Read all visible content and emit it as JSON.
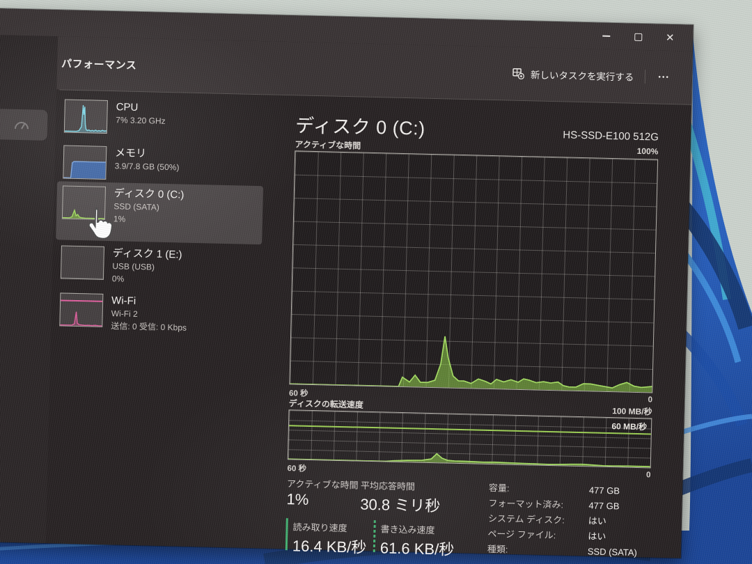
{
  "titlebar": {
    "close_glyph": "✕"
  },
  "header": {
    "title": "パフォーマンス",
    "run_new_task_label": "新しいタスクを実行する",
    "more_glyph": "•••"
  },
  "sidebar": {
    "items": [
      {
        "name": "CPU",
        "line2": "7%  3.20 GHz"
      },
      {
        "name": "メモリ",
        "line2": "3.9/7.8 GB (50%)"
      },
      {
        "name": "ディスク 0 (C:)",
        "line2": "SSD (SATA)",
        "line3": "1%"
      },
      {
        "name": "ディスク 1 (E:)",
        "line2": "USB (USB)",
        "line3": "0%"
      },
      {
        "name": "Wi-Fi",
        "line2": "Wi-Fi 2",
        "line3": "送信: 0 受信: 0 Kbps"
      }
    ]
  },
  "main": {
    "title": "ディスク 0 (C:)",
    "subtitle": "HS-SSD-E100 512G",
    "chart1_label": "アクティブな時間",
    "chart1_max": "100%",
    "chart2_label": "ディスクの転送速度",
    "chart2_max": "100 MB/秒",
    "chart2_marker": "60 MB/秒",
    "x_left": "60 秒",
    "x_right": "0",
    "stats": [
      {
        "label": "アクティブな時間",
        "value": "1%"
      },
      {
        "label": "平均応答時間",
        "value": "30.8 ミリ秒"
      },
      {
        "label": "読み取り速度",
        "value": "16.4 KB/秒"
      },
      {
        "label": "書き込み速度",
        "value": "61.6 KB/秒"
      }
    ],
    "details": [
      {
        "label": "容量:",
        "value": "477 GB"
      },
      {
        "label": "フォーマット済み:",
        "value": "477 GB"
      },
      {
        "label": "システム ディスク:",
        "value": "はい"
      },
      {
        "label": "ページ ファイル:",
        "value": "はい"
      },
      {
        "label": "種類:",
        "value": "SSD (SATA)"
      }
    ]
  },
  "colors": {
    "chart_green": "#8bc34a",
    "memory_blue": "#4f7dc9",
    "cpu_cyan": "#7fd8e8",
    "wifi_pink": "#e0609f",
    "titlebar_bg": "#3a3435",
    "window_bg": "#282324"
  },
  "chart_data": [
    {
      "type": "area",
      "title": "アクティブな時間",
      "ylabel": "アクティブな時間 (%)",
      "ylim": [
        0,
        100
      ],
      "x_axis": "60 秒 → 0",
      "grid": true,
      "points_pct": [
        [
          0,
          0
        ],
        [
          30,
          0
        ],
        [
          31,
          4
        ],
        [
          33,
          2
        ],
        [
          34.5,
          5
        ],
        [
          36,
          2
        ],
        [
          38,
          2
        ],
        [
          40,
          3
        ],
        [
          41.5,
          10
        ],
        [
          42.5,
          22
        ],
        [
          43.5,
          13
        ],
        [
          45,
          5
        ],
        [
          46.5,
          3
        ],
        [
          48,
          3
        ],
        [
          50,
          2
        ],
        [
          52,
          4
        ],
        [
          54,
          3
        ],
        [
          55.5,
          2
        ],
        [
          57,
          4
        ],
        [
          59,
          3
        ],
        [
          61,
          4
        ],
        [
          63,
          3
        ],
        [
          64.5,
          4.5
        ],
        [
          66,
          4
        ],
        [
          68,
          3
        ],
        [
          70,
          3.5
        ],
        [
          72,
          3
        ],
        [
          74,
          3.5
        ],
        [
          75.5,
          2
        ],
        [
          77,
          1.5
        ],
        [
          79,
          1.5
        ],
        [
          81,
          3
        ],
        [
          83,
          3
        ],
        [
          85,
          2.5
        ],
        [
          87,
          2
        ],
        [
          89,
          1.5
        ],
        [
          91,
          3
        ],
        [
          93,
          4
        ],
        [
          95,
          2.5
        ],
        [
          97,
          2
        ],
        [
          100,
          2.5
        ]
      ]
    },
    {
      "type": "area",
      "title": "ディスクの転送速度",
      "ylabel": "MB/秒",
      "ylim": [
        0,
        100
      ],
      "marker_mbps": 60,
      "x_axis": "60 秒 → 0",
      "grid": true,
      "points_pct": [
        [
          0,
          0
        ],
        [
          27,
          0
        ],
        [
          29,
          1.5
        ],
        [
          33,
          3
        ],
        [
          37,
          4
        ],
        [
          39.5,
          7
        ],
        [
          41,
          18
        ],
        [
          42.5,
          9
        ],
        [
          44,
          5
        ],
        [
          46,
          4
        ],
        [
          48.5,
          4
        ],
        [
          51,
          3.5
        ],
        [
          54,
          3
        ],
        [
          57,
          3.5
        ],
        [
          60,
          3
        ],
        [
          64,
          2.5
        ],
        [
          68,
          2
        ],
        [
          72,
          1.5
        ],
        [
          75,
          2
        ],
        [
          78,
          3
        ],
        [
          81,
          3.5
        ],
        [
          84,
          2.5
        ],
        [
          87,
          1.5
        ],
        [
          90,
          1.5
        ],
        [
          94,
          2
        ],
        [
          100,
          2
        ]
      ]
    }
  ],
  "thumbs": {
    "cpu": [
      [
        0,
        3
      ],
      [
        28,
        3
      ],
      [
        34,
        5
      ],
      [
        40,
        18
      ],
      [
        43,
        85
      ],
      [
        45,
        55
      ],
      [
        47,
        80
      ],
      [
        49,
        25
      ],
      [
        51,
        10
      ],
      [
        54,
        6
      ],
      [
        58,
        8
      ],
      [
        62,
        5
      ],
      [
        66,
        7
      ],
      [
        70,
        5
      ],
      [
        74,
        8
      ],
      [
        78,
        5
      ],
      [
        82,
        7
      ],
      [
        86,
        5
      ],
      [
        90,
        8
      ],
      [
        95,
        6
      ],
      [
        100,
        7
      ]
    ],
    "memory": [
      [
        0,
        1
      ],
      [
        17,
        1
      ],
      [
        20,
        48
      ],
      [
        24,
        52
      ],
      [
        30,
        52
      ],
      [
        100,
        52
      ]
    ],
    "disk0": [
      [
        0,
        2
      ],
      [
        16,
        2
      ],
      [
        22,
        5
      ],
      [
        28,
        26
      ],
      [
        32,
        9
      ],
      [
        36,
        13
      ],
      [
        40,
        5
      ],
      [
        46,
        3
      ],
      [
        54,
        2
      ],
      [
        100,
        2
      ]
    ],
    "disk1": [
      [
        0,
        1
      ],
      [
        100,
        1
      ]
    ],
    "wifi": [
      [
        0,
        2
      ],
      [
        28,
        2
      ],
      [
        34,
        6
      ],
      [
        38,
        44
      ],
      [
        41,
        9
      ],
      [
        45,
        4
      ],
      [
        52,
        3
      ],
      [
        60,
        2
      ],
      [
        68,
        3
      ],
      [
        76,
        2
      ],
      [
        84,
        3
      ],
      [
        92,
        2
      ],
      [
        100,
        2
      ]
    ]
  }
}
